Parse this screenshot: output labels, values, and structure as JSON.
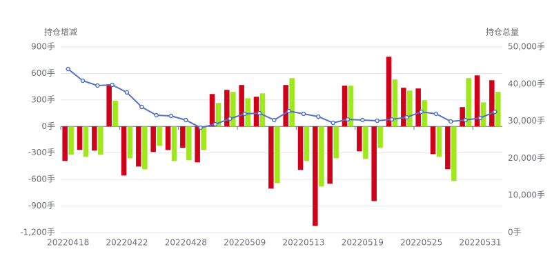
{
  "chart_data": {
    "type": "bar_line",
    "ylabel": "持仓增减",
    "y2label": "持仓总量",
    "categories": [
      "20220418",
      null,
      null,
      null,
      "20220422",
      null,
      null,
      null,
      "20220428",
      null,
      null,
      null,
      "20220509",
      null,
      null,
      null,
      "20220513",
      null,
      null,
      null,
      "20220519",
      null,
      null,
      null,
      "20220525",
      null,
      null,
      null,
      "20220531",
      null
    ],
    "series": [
      {
        "type": "bar",
        "color": "#d0021b",
        "values": [
          -390,
          -265,
          -273,
          477,
          -555,
          -453,
          -289,
          -266,
          -242,
          -406,
          367,
          414,
          469,
          336,
          -703,
          469,
          -492,
          -1125,
          -648,
          461,
          -281,
          -844,
          789,
          438,
          430,
          -313,
          -484,
          219,
          578,
          523
        ]
      },
      {
        "type": "bar",
        "color": "#a0e81c",
        "values": [
          -320,
          -344,
          -320,
          290,
          -360,
          -484,
          -219,
          -391,
          -383,
          -266,
          266,
          391,
          320,
          375,
          -641,
          547,
          -391,
          -680,
          -359,
          461,
          -367,
          -242,
          531,
          406,
          297,
          -344,
          -617,
          547,
          273,
          391
        ]
      },
      {
        "type": "line",
        "axis": "y2",
        "color": "#5470c6",
        "values": [
          44050,
          40890,
          39590,
          39780,
          37730,
          33830,
          31600,
          31410,
          30300,
          28250,
          29180,
          30670,
          31970,
          32160,
          30300,
          32720,
          31970,
          31230,
          29550,
          30480,
          30300,
          30110,
          30480,
          31040,
          32530,
          31970,
          29930,
          30300,
          30860,
          32530
        ]
      }
    ],
    "ylim": [
      -1200,
      900
    ],
    "yticks": [
      {
        "value": 900,
        "label": "900手"
      },
      {
        "value": 600,
        "label": "600手"
      },
      {
        "value": 300,
        "label": "300手"
      },
      {
        "value": 0,
        "label": "0手"
      },
      {
        "value": -300,
        "label": "-300手"
      },
      {
        "value": -600,
        "label": "-600手"
      },
      {
        "value": -900,
        "label": "-900手"
      },
      {
        "value": -1200,
        "label": "-1,200手"
      }
    ],
    "y2lim": [
      0,
      50000
    ],
    "y2ticks": [
      {
        "value": 50000,
        "label": "50,000手"
      },
      {
        "value": 40000,
        "label": "40,000手"
      },
      {
        "value": 30000,
        "label": "30,000手"
      },
      {
        "value": 20000,
        "label": "20,000手"
      },
      {
        "value": 10000,
        "label": "10,000手"
      },
      {
        "value": 0,
        "label": "0手"
      }
    ],
    "grid": true
  }
}
